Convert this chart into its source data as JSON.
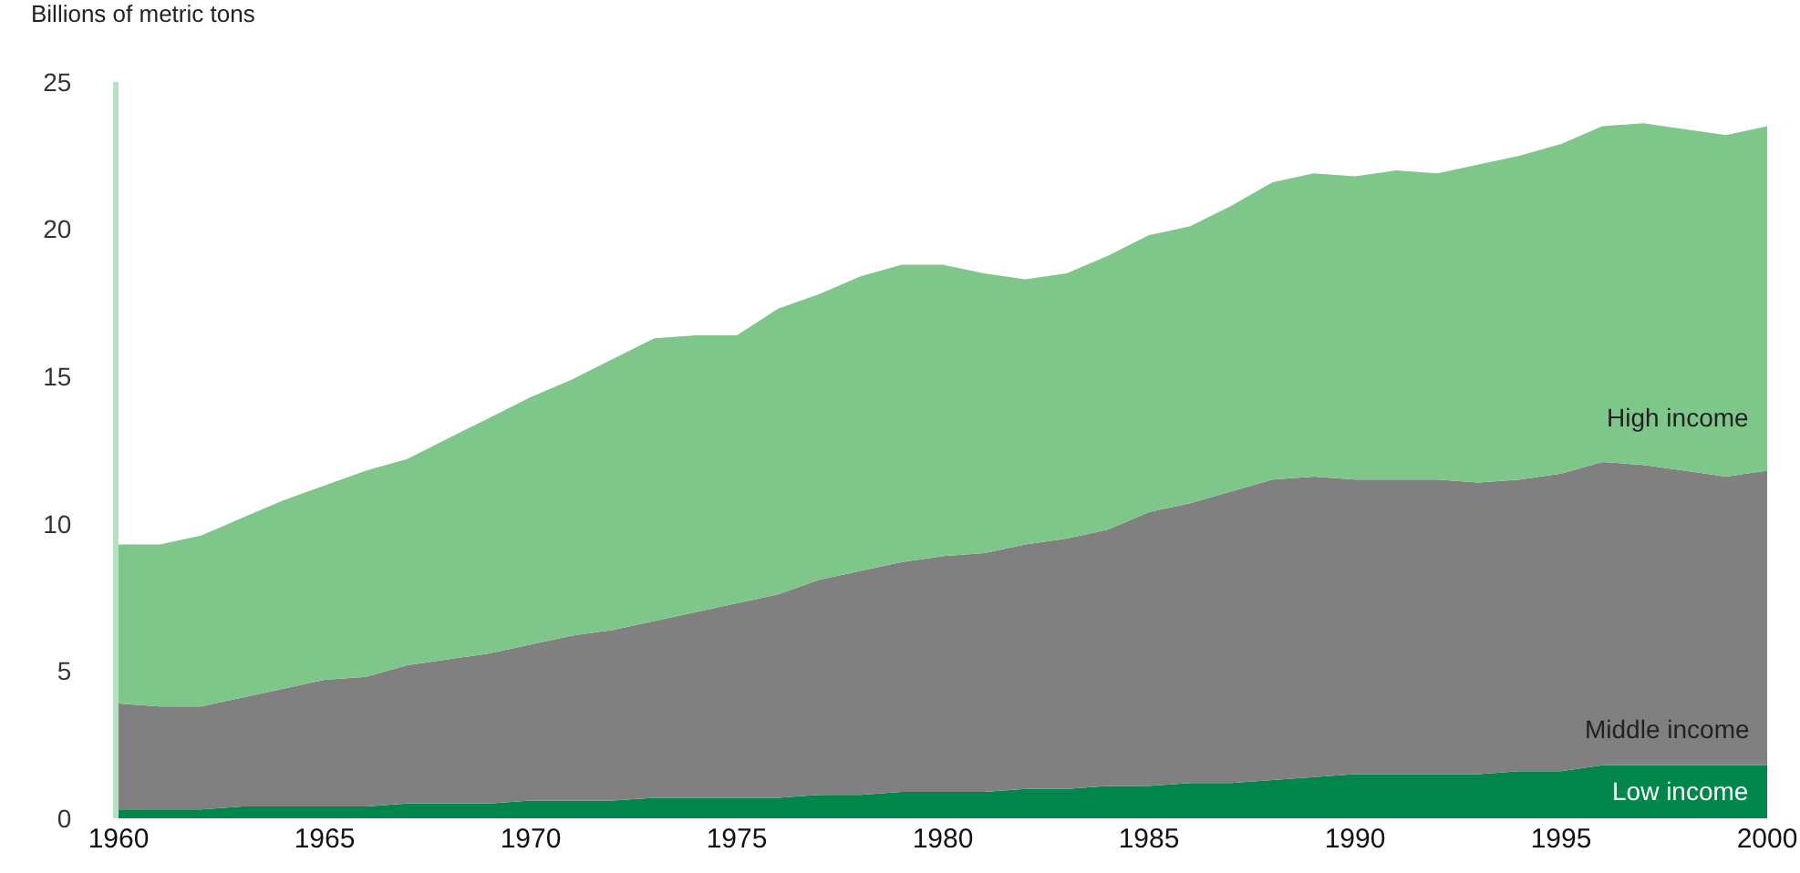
{
  "chart_data": {
    "type": "area",
    "stacked": true,
    "ylabel": "Billions of metric tons",
    "x": [
      1960,
      1961,
      1962,
      1963,
      1964,
      1965,
      1966,
      1967,
      1968,
      1969,
      1970,
      1971,
      1972,
      1973,
      1974,
      1975,
      1976,
      1977,
      1978,
      1979,
      1980,
      1981,
      1982,
      1983,
      1984,
      1985,
      1986,
      1987,
      1988,
      1989,
      1990,
      1991,
      1992,
      1993,
      1994,
      1995,
      1996,
      1997,
      1998,
      1999,
      2000
    ],
    "series": [
      {
        "name": "Low income",
        "color": "#00854a",
        "values": [
          0.3,
          0.3,
          0.3,
          0.4,
          0.4,
          0.4,
          0.4,
          0.5,
          0.5,
          0.5,
          0.6,
          0.6,
          0.6,
          0.7,
          0.7,
          0.7,
          0.7,
          0.8,
          0.8,
          0.9,
          0.9,
          0.9,
          1.0,
          1.0,
          1.1,
          1.1,
          1.2,
          1.2,
          1.3,
          1.4,
          1.5,
          1.5,
          1.5,
          1.5,
          1.6,
          1.6,
          1.8,
          1.8,
          1.8,
          1.8,
          1.8
        ]
      },
      {
        "name": "Middle income",
        "color": "#808080",
        "values": [
          3.6,
          3.5,
          3.5,
          3.7,
          4.0,
          4.3,
          4.4,
          4.7,
          4.9,
          5.1,
          5.3,
          5.6,
          5.8,
          6.0,
          6.3,
          6.6,
          6.9,
          7.3,
          7.6,
          7.8,
          8.0,
          8.1,
          8.3,
          8.5,
          8.7,
          9.3,
          9.5,
          9.9,
          10.2,
          10.2,
          10.0,
          10.0,
          10.0,
          9.9,
          9.9,
          10.1,
          10.3,
          10.2,
          10.0,
          9.8,
          10.0
        ]
      },
      {
        "name": "High income",
        "color": "#7fc68a",
        "values": [
          5.4,
          5.5,
          5.8,
          6.1,
          6.4,
          6.6,
          7.0,
          7.0,
          7.5,
          8.0,
          8.4,
          8.7,
          9.2,
          9.6,
          9.4,
          9.1,
          9.7,
          9.7,
          10.0,
          10.1,
          9.9,
          9.5,
          9.0,
          9.0,
          9.3,
          9.4,
          9.4,
          9.7,
          10.1,
          10.3,
          10.3,
          10.5,
          10.4,
          10.8,
          11.0,
          11.2,
          11.4,
          11.6,
          11.6,
          11.6,
          11.7
        ]
      }
    ],
    "xlim": [
      1960,
      2000
    ],
    "xticks": [
      1960,
      1965,
      1970,
      1975,
      1980,
      1985,
      1990,
      1995,
      2000
    ],
    "ylim": [
      0,
      25
    ],
    "yticks": [
      0,
      5,
      10,
      15,
      20,
      25
    ],
    "grid": false,
    "legend": false
  }
}
